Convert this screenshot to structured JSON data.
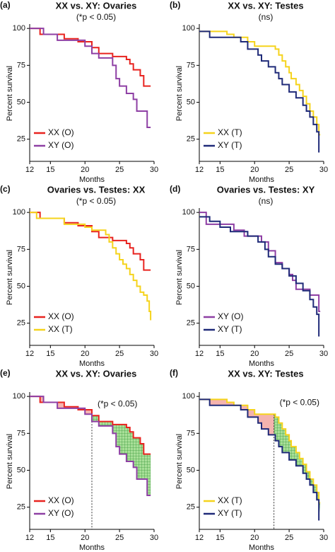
{
  "chart_data": [
    {
      "type": "line",
      "panel_label": "(a)",
      "title": "XX vs. XY: Ovaries",
      "subtitle": "(*p < 0.05)",
      "y_label": "Percent survival",
      "x_label": "Months",
      "xlim": [
        12,
        30
      ],
      "xticks": [
        12,
        15,
        20,
        25,
        30
      ],
      "ylim": [
        10,
        102
      ],
      "yticks": [
        25,
        50,
        75,
        100
      ],
      "legend": "lower left",
      "series": [
        {
          "name": "XX (O)",
          "color": "#e8231f",
          "x": [
            12,
            13.5,
            17,
            19,
            21,
            22,
            24,
            26,
            26.5,
            27,
            28,
            28.5,
            29.5
          ],
          "values": [
            100,
            96,
            93,
            91,
            87,
            83,
            81,
            79,
            76,
            72,
            68,
            61,
            61
          ]
        },
        {
          "name": "XY (O)",
          "color": "#8e3fa4",
          "x": [
            12,
            14,
            16,
            20,
            21,
            22,
            24,
            24.5,
            25,
            26,
            27,
            27.5,
            29,
            29.5
          ],
          "values": [
            100,
            96,
            92,
            88,
            83,
            80,
            75,
            66,
            61,
            56,
            52,
            44,
            33,
            33
          ]
        }
      ]
    },
    {
      "type": "line",
      "panel_label": "(b)",
      "title": "XX vs. XY: Testes",
      "subtitle": "(ns)",
      "y_label": "Percent survival",
      "x_label": "Months",
      "xlim": [
        12,
        30
      ],
      "xticks": [
        12,
        15,
        20,
        25,
        30
      ],
      "ylim": [
        10,
        102
      ],
      "yticks": [
        25,
        50,
        75,
        100
      ],
      "legend": "lower left",
      "series": [
        {
          "name": "XX (T)",
          "color": "#f5d31c",
          "x": [
            12,
            16,
            17,
            19,
            20,
            23,
            23.5,
            24,
            24.5,
            25,
            25.3,
            26,
            26.5,
            27,
            27.5,
            28,
            28.5,
            29,
            29.3,
            29.5
          ],
          "values": [
            98,
            96,
            94,
            91,
            88,
            86,
            82,
            78,
            74,
            70,
            66,
            62,
            58,
            54,
            49,
            44,
            40,
            35,
            28,
            28
          ]
        },
        {
          "name": "XY (T)",
          "color": "#1f2a78",
          "x": [
            12,
            13.5,
            18,
            19,
            20.5,
            21,
            22,
            23,
            23.5,
            24,
            25,
            26,
            27,
            27.5,
            28,
            28.5,
            29,
            29.3
          ],
          "values": [
            98,
            94,
            91,
            86,
            82,
            78,
            74,
            70,
            66,
            62,
            57,
            53,
            48,
            44,
            40,
            35,
            30,
            16
          ]
        }
      ]
    },
    {
      "type": "line",
      "panel_label": "(c)",
      "title": "Ovaries vs. Testes: XX",
      "subtitle": "(*p < 0.05)",
      "y_label": "Percent survival",
      "x_label": "Months",
      "xlim": [
        12,
        30
      ],
      "xticks": [
        12,
        15,
        20,
        25,
        30
      ],
      "ylim": [
        10,
        102
      ],
      "yticks": [
        25,
        50,
        75,
        100
      ],
      "legend": "lower left",
      "series": [
        {
          "name": "XX (O)",
          "color": "#e8231f",
          "x": [
            12,
            13.5,
            17,
            19,
            21,
            22,
            24,
            26,
            26.5,
            27,
            28,
            28.5,
            29.5
          ],
          "values": [
            100,
            96,
            93,
            91,
            87,
            83,
            81,
            79,
            76,
            72,
            68,
            61,
            61
          ]
        },
        {
          "name": "XX (T)",
          "color": "#f5d31c",
          "x": [
            12,
            13,
            17,
            20,
            21,
            23,
            23.5,
            24,
            24.5,
            25,
            25.5,
            26,
            26.5,
            27,
            27.5,
            28,
            28.5,
            29,
            29.3,
            29.5
          ],
          "values": [
            100,
            96,
            92,
            90,
            88,
            85,
            80,
            76,
            72,
            68,
            65,
            62,
            58,
            54,
            50,
            46,
            44,
            40,
            33,
            27
          ]
        }
      ]
    },
    {
      "type": "line",
      "panel_label": "(d)",
      "title": "Ovaries vs. Testes: XY",
      "subtitle": "(ns)",
      "y_label": "Percent survival",
      "x_label": "Months",
      "xlim": [
        12,
        30
      ],
      "xticks": [
        12,
        15,
        20,
        25,
        30
      ],
      "ylim": [
        10,
        102
      ],
      "yticks": [
        25,
        50,
        75,
        100
      ],
      "legend": "lower left",
      "series": [
        {
          "name": "XY (O)",
          "color": "#8e3fa4",
          "x": [
            12,
            13,
            17,
            18.5,
            21,
            22,
            23,
            24,
            25,
            25.5,
            26,
            28,
            29.3,
            29.5
          ],
          "values": [
            100,
            92,
            88,
            84,
            80,
            74,
            66,
            62,
            58,
            54,
            48,
            44,
            33,
            33
          ]
        },
        {
          "name": "XY (T)",
          "color": "#1f2a78",
          "x": [
            12,
            13.5,
            15,
            16.5,
            19,
            20.5,
            21.5,
            22,
            23,
            24,
            25,
            26,
            27,
            28,
            28.5,
            29,
            29.3
          ],
          "values": [
            97,
            94,
            90,
            87,
            84,
            80,
            75,
            70,
            65,
            62,
            57,
            52,
            47,
            41,
            36,
            31,
            16
          ]
        }
      ]
    },
    {
      "type": "line",
      "panel_label": "(e)",
      "title": "XX vs. XY: Ovaries",
      "subtitle": "(*p < 0.05)",
      "y_label": "Percent survival",
      "x_label": "Months",
      "xlim": [
        12,
        30
      ],
      "xticks": [
        12,
        15,
        20,
        25,
        30
      ],
      "ylim": [
        10,
        102
      ],
      "yticks": [
        25,
        50,
        75,
        100
      ],
      "legend": "lower left",
      "threshold_x": 21,
      "series": [
        {
          "name": "XX (O)",
          "color": "#e8231f",
          "x": [
            12,
            13.5,
            17,
            19,
            21,
            22,
            24,
            26,
            26.5,
            27,
            28,
            28.5,
            29.5
          ],
          "values": [
            100,
            96,
            93,
            91,
            87,
            83,
            81,
            79,
            76,
            72,
            68,
            61,
            61
          ]
        },
        {
          "name": "XY (O)",
          "color": "#8e3fa4",
          "x": [
            12,
            14,
            16,
            20,
            21,
            22,
            24,
            24.5,
            25,
            26,
            27,
            27.5,
            29,
            29.5
          ],
          "values": [
            100,
            96,
            92,
            88,
            83,
            80,
            75,
            66,
            61,
            56,
            52,
            44,
            33,
            33
          ]
        }
      ]
    },
    {
      "type": "line",
      "panel_label": "(f)",
      "title": "XX vs. XY: Testes",
      "subtitle": "(*p < 0.05)",
      "y_label": "Percent survival",
      "x_label": "Months",
      "xlim": [
        12,
        30
      ],
      "xticks": [
        12,
        15,
        20,
        25,
        30
      ],
      "ylim": [
        10,
        102
      ],
      "yticks": [
        25,
        50,
        75,
        100
      ],
      "legend": "lower left",
      "threshold_x": 22.8,
      "series": [
        {
          "name": "XX (T)",
          "color": "#f5d31c",
          "x": [
            12,
            16,
            17,
            19,
            20,
            23,
            23.5,
            24,
            24.5,
            25,
            25.3,
            26,
            26.5,
            27,
            27.5,
            28,
            28.5,
            29,
            29.3,
            29.5
          ],
          "values": [
            98,
            96,
            94,
            91,
            88,
            86,
            82,
            78,
            74,
            70,
            66,
            62,
            58,
            54,
            49,
            44,
            40,
            35,
            28,
            28
          ]
        },
        {
          "name": "XY (T)",
          "color": "#1f2a78",
          "x": [
            12,
            13.5,
            18,
            19,
            20.5,
            21,
            22,
            23,
            23.5,
            24,
            25,
            26,
            27,
            27.5,
            28,
            28.5,
            29,
            29.3
          ],
          "values": [
            98,
            94,
            91,
            86,
            82,
            78,
            74,
            70,
            66,
            62,
            57,
            53,
            48,
            44,
            40,
            35,
            30,
            16
          ]
        }
      ]
    }
  ]
}
